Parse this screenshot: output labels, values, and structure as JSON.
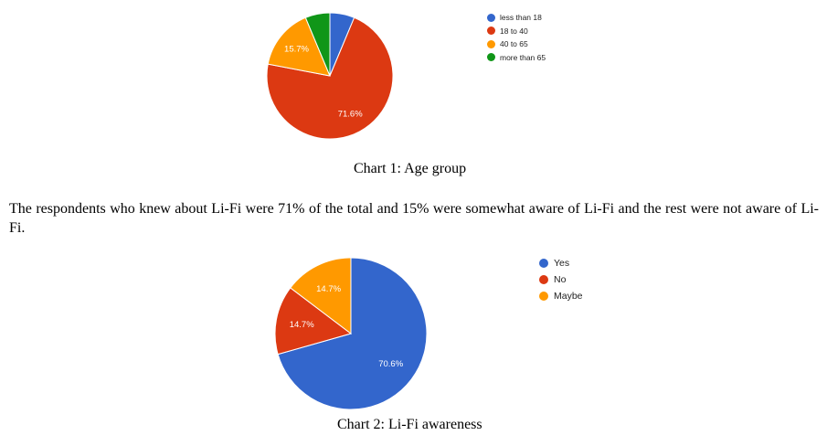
{
  "chart_data": [
    {
      "type": "pie",
      "caption": "Chart 1: Age group",
      "categories": [
        "less than 18",
        "18 to 40",
        "40 to 65",
        "more than 65"
      ],
      "values": [
        6.3,
        71.6,
        15.7,
        6.3
      ],
      "slice_labels": [
        "",
        "71.6%",
        "15.7%",
        ""
      ],
      "colors": [
        "#3366cc",
        "#dc3912",
        "#ff9900",
        "#109618"
      ],
      "start_angle_deg": 90,
      "legend_position": "right"
    },
    {
      "type": "pie",
      "caption": "Chart 2: Li-Fi awareness",
      "categories": [
        "Yes",
        "No",
        "Maybe"
      ],
      "values": [
        70.6,
        14.7,
        14.7
      ],
      "slice_labels": [
        "70.6%",
        "14.7%",
        "14.7%"
      ],
      "colors": [
        "#3366cc",
        "#dc3912",
        "#ff9900"
      ],
      "start_angle_deg": 90,
      "legend_position": "right"
    }
  ],
  "paragraph": "The respondents who knew about Li-Fi were 71% of the total and 15% were somewhat aware of Li-Fi and the rest were not aware of Li-Fi."
}
